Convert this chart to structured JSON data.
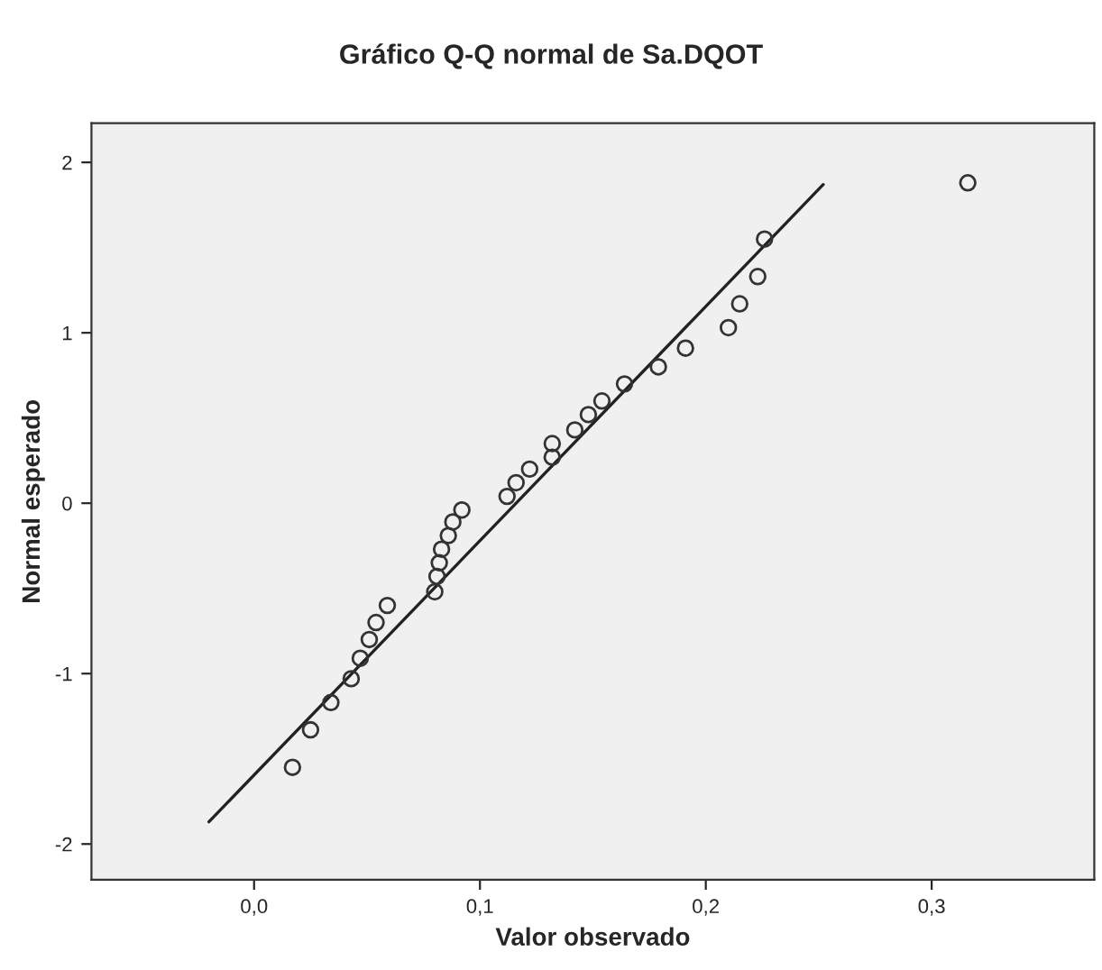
{
  "chart_data": {
    "type": "scatter",
    "title": "Gráfico Q-Q normal de Sa.DQOT",
    "xlabel": "Valor observado",
    "ylabel": "Normal esperado",
    "xlim": [
      -0.072,
      0.372
    ],
    "ylim": [
      -2.21,
      2.23
    ],
    "xticks": [
      {
        "value": 0.0,
        "label": "0,0"
      },
      {
        "value": 0.1,
        "label": "0,1"
      },
      {
        "value": 0.2,
        "label": "0,2"
      },
      {
        "value": 0.3,
        "label": "0,3"
      }
    ],
    "yticks": [
      -2,
      -1,
      0,
      1,
      2
    ],
    "grid": false,
    "series": [
      {
        "marker": "circle",
        "color": "#333333",
        "x": [
          0.017,
          0.025,
          0.034,
          0.043,
          0.047,
          0.051,
          0.054,
          0.059,
          0.08,
          0.081,
          0.082,
          0.083,
          0.086,
          0.088,
          0.092,
          0.112,
          0.116,
          0.122,
          0.132,
          0.132,
          0.142,
          0.148,
          0.154,
          0.164,
          0.179,
          0.191,
          0.21,
          0.215,
          0.223,
          0.226,
          0.316
        ],
        "values": [
          -1.55,
          -1.33,
          -1.17,
          -1.03,
          -0.91,
          -0.8,
          -0.7,
          -0.6,
          -0.52,
          -0.43,
          -0.35,
          -0.27,
          -0.19,
          -0.11,
          -0.04,
          0.04,
          0.12,
          0.2,
          0.27,
          0.35,
          0.43,
          0.52,
          0.6,
          0.7,
          0.8,
          0.91,
          1.03,
          1.17,
          1.33,
          1.55,
          1.88
        ]
      },
      {
        "type": "line",
        "color": "#222222",
        "x": [
          -0.02,
          0.252
        ],
        "values": [
          -1.87,
          1.87
        ]
      }
    ]
  }
}
